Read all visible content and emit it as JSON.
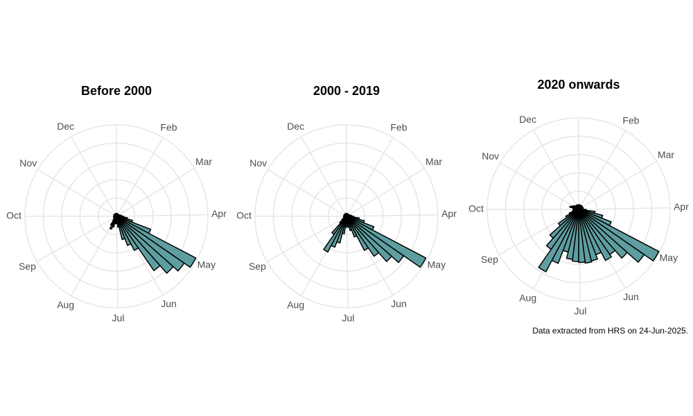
{
  "chart_data": [
    {
      "type": "polar_bar",
      "title": "Before 2000",
      "color": "#5f9ea0",
      "edgecolor": "#000000",
      "x": [
        1,
        2,
        3,
        4,
        5,
        6,
        7,
        8,
        9,
        10,
        11,
        12,
        13,
        14,
        15,
        16,
        17,
        18,
        19,
        20,
        21,
        22,
        23,
        24,
        25,
        26,
        27,
        28,
        29,
        30,
        31,
        32,
        33,
        34,
        35,
        36,
        37,
        38,
        39,
        40,
        41,
        42,
        43,
        44,
        45,
        46,
        47,
        48,
        49,
        50,
        51,
        52
      ],
      "values": [
        3,
        3,
        3,
        3,
        3,
        3,
        3,
        3,
        3,
        3,
        4,
        5,
        6,
        8,
        12,
        18,
        40,
        98,
        90,
        83,
        72,
        42,
        34,
        26,
        12,
        8,
        6,
        8,
        12,
        15,
        11,
        6,
        4,
        3,
        3,
        3,
        3,
        3,
        3,
        3,
        3,
        3,
        3,
        3,
        3,
        3,
        3,
        3,
        3,
        3,
        3,
        3
      ],
      "xlim": [
        0,
        52
      ],
      "xticks": [
        {
          "value": 0,
          "label": null
        },
        {
          "value": 4.43,
          "label": "Feb"
        },
        {
          "value": 8.43,
          "label": "Mar"
        },
        {
          "value": 12.86,
          "label": "Apr"
        },
        {
          "value": 17.14,
          "label": "May"
        },
        {
          "value": 21.57,
          "label": "Jun"
        },
        {
          "value": 25.86,
          "label": "Jul"
        },
        {
          "value": 30.29,
          "label": "Aug"
        },
        {
          "value": 34.71,
          "label": "Sep"
        },
        {
          "value": 39,
          "label": "Oct"
        },
        {
          "value": 43.43,
          "label": "Nov"
        },
        {
          "value": 47.71,
          "label": "Dec"
        }
      ],
      "ylim": [
        0,
        100
      ],
      "yticks": [
        20,
        40,
        60,
        80,
        100
      ],
      "grid": true
    },
    {
      "type": "polar_bar",
      "title": "2000 - 2019",
      "color": "#5f9ea0",
      "edgecolor": "#000000",
      "x": [
        1,
        2,
        3,
        4,
        5,
        6,
        7,
        8,
        9,
        10,
        11,
        12,
        13,
        14,
        15,
        16,
        17,
        18,
        19,
        20,
        21,
        22,
        23,
        24,
        25,
        26,
        27,
        28,
        29,
        30,
        31,
        32,
        33,
        34,
        35,
        36,
        37,
        38,
        39,
        40,
        41,
        42,
        43,
        44,
        45,
        46,
        47,
        48,
        49,
        50,
        51,
        52
      ],
      "values": [
        3,
        3,
        3,
        3,
        3,
        3,
        3,
        3,
        3,
        3,
        4,
        5,
        6,
        8,
        14,
        20,
        32,
        98,
        76,
        66,
        53,
        42,
        24,
        16,
        12,
        10,
        12,
        19,
        30,
        36,
        44,
        24,
        10,
        6,
        4,
        3,
        3,
        3,
        3,
        3,
        3,
        3,
        3,
        3,
        3,
        3,
        3,
        3,
        3,
        3,
        3,
        3
      ],
      "xlim": [
        0,
        52
      ],
      "xticks": [
        {
          "value": 0,
          "label": null
        },
        {
          "value": 4.43,
          "label": "Feb"
        },
        {
          "value": 8.43,
          "label": "Mar"
        },
        {
          "value": 12.86,
          "label": "Apr"
        },
        {
          "value": 17.14,
          "label": "May"
        },
        {
          "value": 21.57,
          "label": "Jun"
        },
        {
          "value": 25.86,
          "label": "Jul"
        },
        {
          "value": 30.29,
          "label": "Aug"
        },
        {
          "value": 34.71,
          "label": "Sep"
        },
        {
          "value": 39,
          "label": "Oct"
        },
        {
          "value": 43.43,
          "label": "Nov"
        },
        {
          "value": 47.71,
          "label": "Dec"
        }
      ],
      "ylim": [
        0,
        100
      ],
      "yticks": [
        20,
        40,
        60,
        80,
        100
      ],
      "grid": true
    },
    {
      "type": "polar_bar",
      "title": "2020 onwards",
      "color": "#5f9ea0",
      "edgecolor": "#000000",
      "x": [
        1,
        2,
        3,
        4,
        5,
        6,
        7,
        8,
        9,
        10,
        11,
        12,
        13,
        14,
        15,
        16,
        17,
        18,
        19,
        20,
        21,
        22,
        23,
        24,
        25,
        26,
        27,
        28,
        29,
        30,
        31,
        32,
        33,
        34,
        35,
        36,
        37,
        38,
        39,
        40,
        41,
        42,
        43,
        44,
        45,
        46,
        47,
        48,
        49,
        50,
        51,
        52
      ],
      "values": [
        5,
        5,
        5,
        5,
        5,
        5,
        5,
        5,
        5,
        5,
        5,
        5,
        5,
        8,
        18,
        27,
        38,
        99,
        87,
        71,
        60,
        63,
        53,
        58,
        59,
        58,
        57,
        55,
        48,
        63,
        77,
        53,
        42,
        27,
        16,
        11,
        7,
        6,
        6,
        6,
        6,
        10,
        8,
        7,
        6,
        5,
        5,
        5,
        5,
        5,
        5,
        5
      ],
      "xlim": [
        0,
        52
      ],
      "xticks": [
        {
          "value": 0,
          "label": null
        },
        {
          "value": 4.43,
          "label": "Feb"
        },
        {
          "value": 8.43,
          "label": "Mar"
        },
        {
          "value": 12.86,
          "label": "Apr"
        },
        {
          "value": 17.14,
          "label": "May"
        },
        {
          "value": 21.57,
          "label": "Jun"
        },
        {
          "value": 25.86,
          "label": "Jul"
        },
        {
          "value": 30.29,
          "label": "Aug"
        },
        {
          "value": 34.71,
          "label": "Sep"
        },
        {
          "value": 39,
          "label": "Oct"
        },
        {
          "value": 43.43,
          "label": "Nov"
        },
        {
          "value": 47.71,
          "label": "Dec"
        }
      ],
      "ylim": [
        0,
        100
      ],
      "yticks": [
        20,
        40,
        60,
        80,
        100
      ],
      "grid": true
    }
  ],
  "caption": "Data extracted from HRS on 24-Jun-2025."
}
